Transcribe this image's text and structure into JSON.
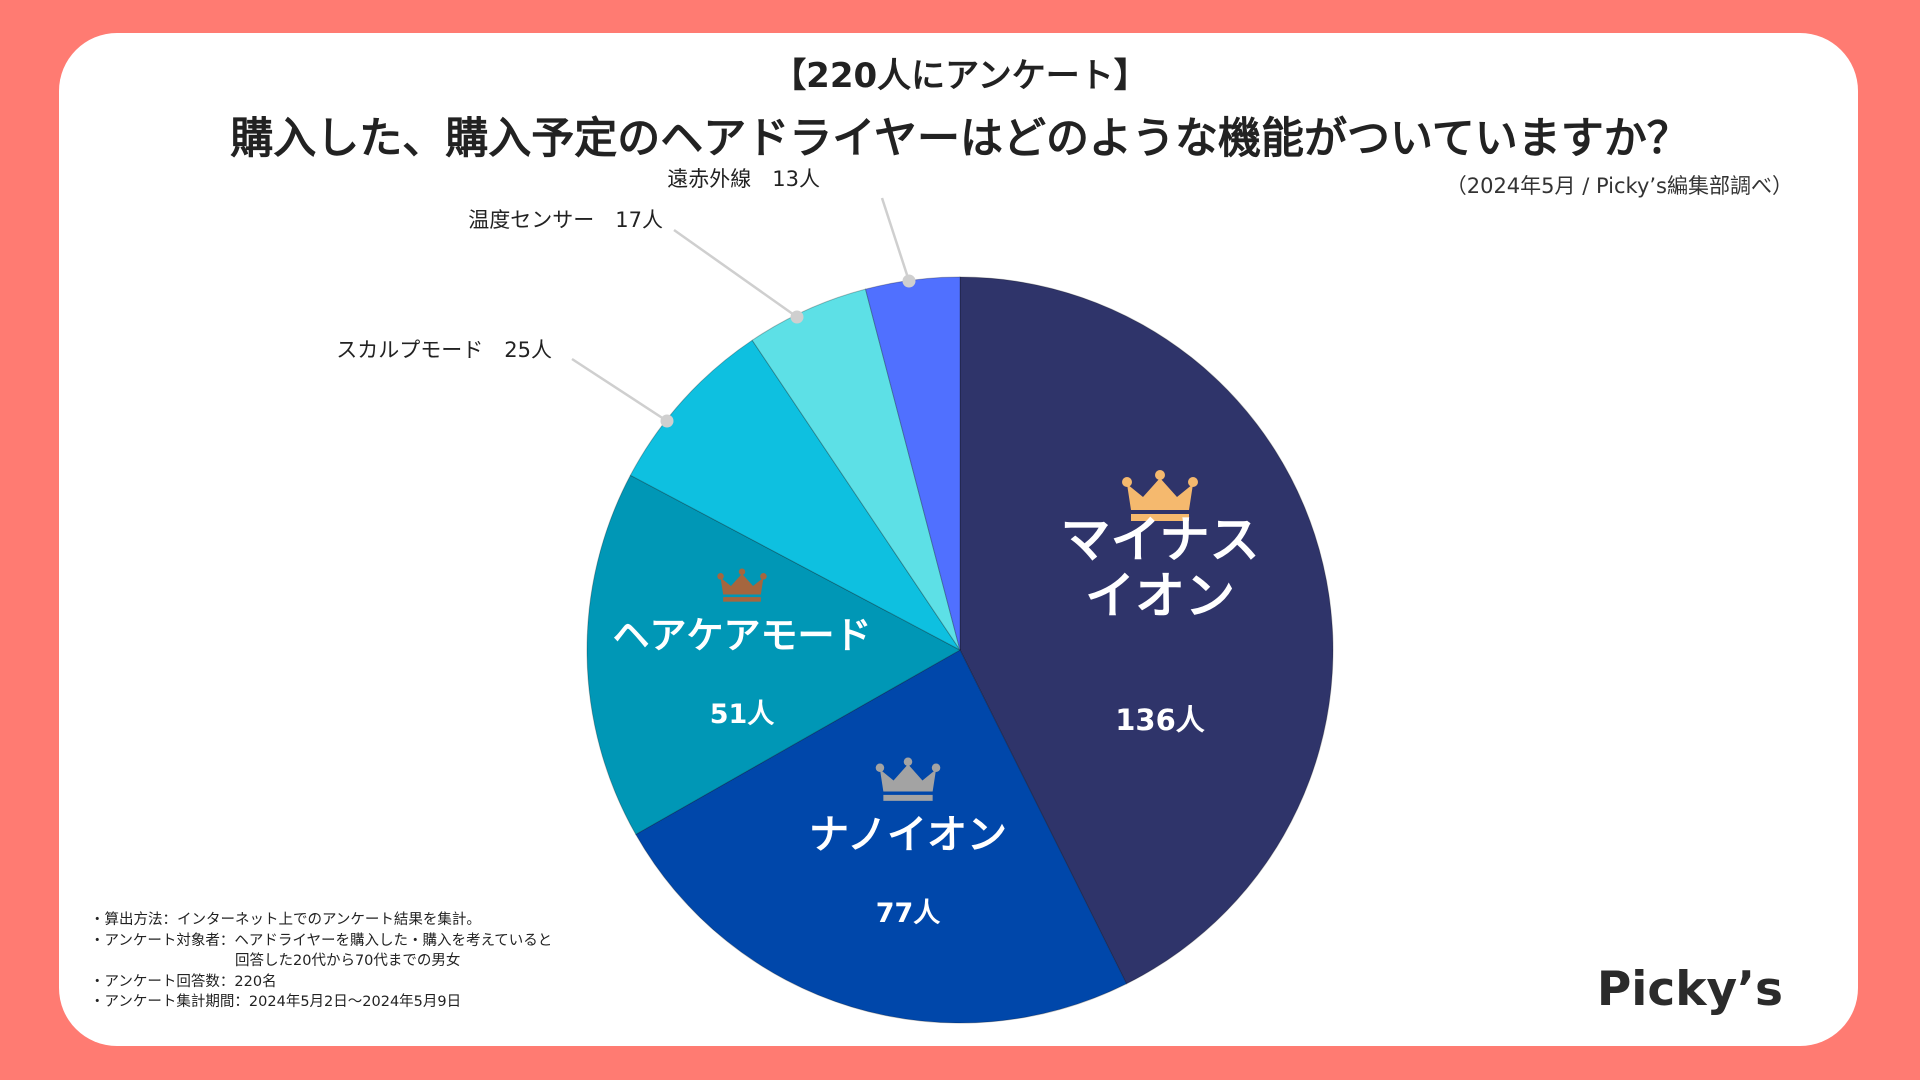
{
  "header": {
    "survey_tag": "【220人にアンケート】",
    "title": "購入した、購入予定のヘアドライヤーはどのような機能がついていますか？",
    "source": "（2024年5月 / Picky’s編集部調べ）"
  },
  "chart_data": {
    "type": "pie",
    "unit": "人",
    "start": "12 o'clock, clockwise",
    "categories": [
      "マイナスイオン",
      "ナノイオン",
      "ヘアケアモード",
      "スカルプモード",
      "温度センサー",
      "遠赤外線"
    ],
    "values": [
      136,
      77,
      51,
      25,
      17,
      13
    ],
    "slices": [
      {
        "label": "マイナスイオン",
        "label_lines": [
          "マイナス",
          "イオン"
        ],
        "value": 136,
        "value_text": "136人",
        "color": "#2f346a",
        "rank": 1,
        "label_position": "inside"
      },
      {
        "label": "ナノイオン",
        "label_lines": [
          "ナノイオン"
        ],
        "value": 77,
        "value_text": "77人",
        "color": "#0047aa",
        "rank": 2,
        "label_position": "inside"
      },
      {
        "label": "ヘアケアモード",
        "label_lines": [
          "ヘアケアモード"
        ],
        "value": 51,
        "value_text": "51人",
        "color": "#0097b6",
        "rank": 3,
        "label_position": "inside"
      },
      {
        "label": "スカルプモード",
        "value": 25,
        "callout": "スカルプモード　25人",
        "color": "#0ec0e0",
        "label_position": "outside"
      },
      {
        "label": "温度センサー",
        "value": 17,
        "callout": "温度センサー　17人",
        "color": "#5de0e6",
        "label_position": "outside"
      },
      {
        "label": "遠赤外線",
        "value": 13,
        "callout": "遠赤外線　13人",
        "color": "#5070ff",
        "label_position": "outside"
      }
    ],
    "crowns": [
      {
        "rank": 1,
        "color": "#f5b96e",
        "icon": "crown-icon"
      },
      {
        "rank": 2,
        "color": "#a3a3a3",
        "icon": "crown-icon"
      },
      {
        "rank": 3,
        "color": "#a5663e",
        "icon": "crown-icon"
      }
    ]
  },
  "notes": [
    "・算出方法：インターネット上でのアンケート結果を集計。",
    "・アンケート対象者：ヘアドライヤーを購入した・購入を考えていると",
    "　　　　　　　　　　回答した20代から70代までの男女",
    "・アンケート回答数：220名",
    "・アンケート集計期間：2024年5月2日～2024年5月9日"
  ],
  "logo": "Picky’s"
}
